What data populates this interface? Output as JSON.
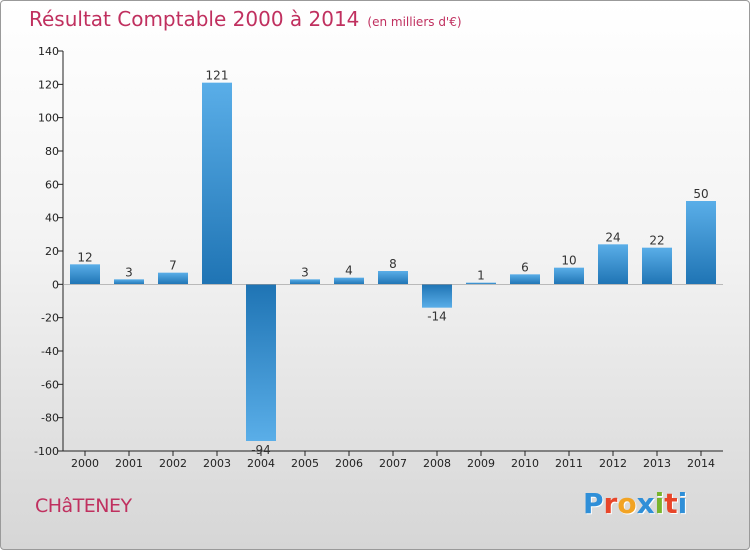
{
  "chart_data": {
    "type": "bar",
    "title": "Résultat Comptable 2000 à 2014",
    "subtitle": "(en milliers d'€)",
    "categories": [
      "2000",
      "2001",
      "2002",
      "2003",
      "2004",
      "2005",
      "2006",
      "2007",
      "2008",
      "2009",
      "2010",
      "2011",
      "2012",
      "2013",
      "2014"
    ],
    "values": [
      12,
      3,
      7,
      121,
      -94,
      3,
      4,
      8,
      -14,
      1,
      6,
      10,
      24,
      22,
      50
    ],
    "ylim": [
      -100,
      140
    ],
    "yticks": [
      -100,
      -80,
      -60,
      -40,
      -20,
      0,
      20,
      40,
      60,
      80,
      100,
      120,
      140
    ],
    "xlabel": "",
    "ylabel": "",
    "grid": false,
    "colors": {
      "bar_light": "#5aaee8",
      "bar_dark": "#1f74b4",
      "axis": "#222222"
    }
  },
  "footer": {
    "town": "CHâTENEY",
    "brand": [
      "P",
      "r",
      "o",
      "x",
      "i",
      "t",
      "i"
    ],
    "brand_colors": [
      "#2f8fd8",
      "#e8462a",
      "#f2a323",
      "#2f8fd8",
      "#79b42d",
      "#e8462a",
      "#2f8fd8"
    ]
  }
}
